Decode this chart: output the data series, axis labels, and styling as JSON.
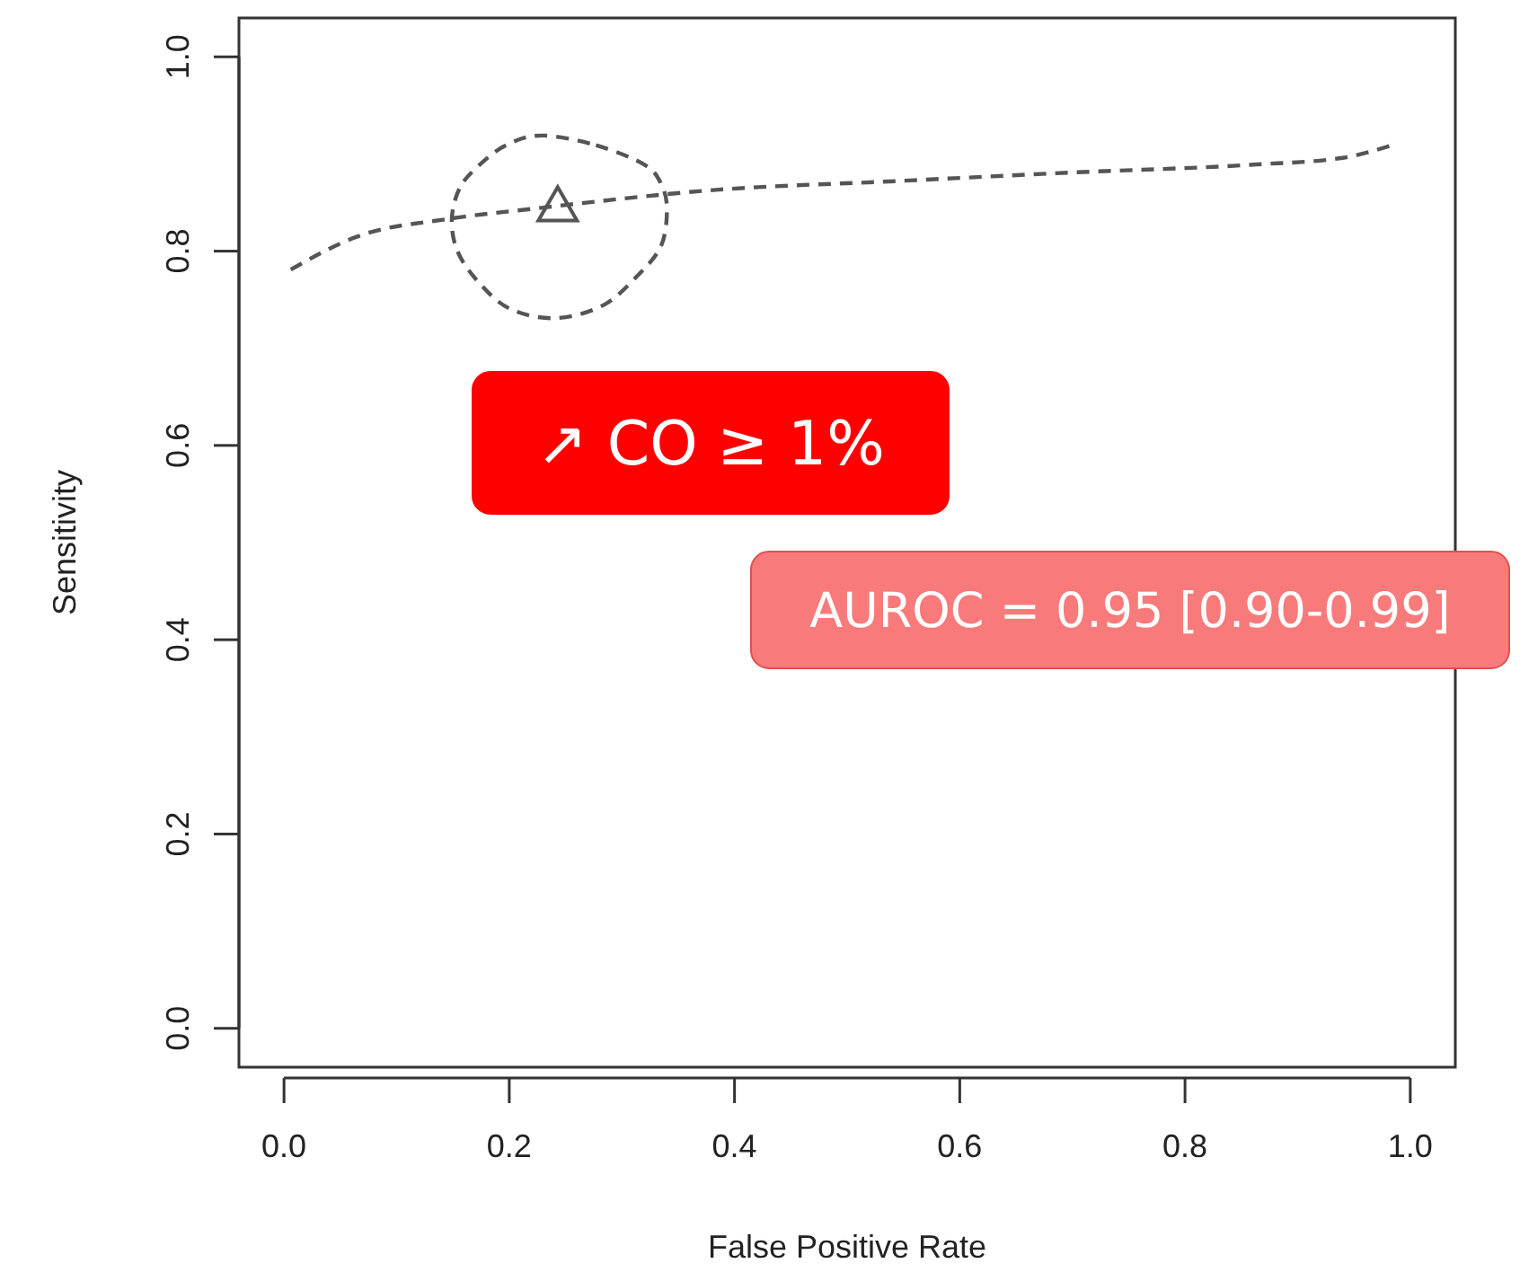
{
  "chart_data": {
    "type": "line",
    "xlabel": "False Positive Rate",
    "ylabel": "Sensitivity",
    "xlim": [
      -0.04,
      1.04
    ],
    "ylim": [
      -0.04,
      1.04
    ],
    "xticks": [
      "0.0",
      0.2,
      0.4,
      0.6,
      0.8,
      "1.0"
    ],
    "yticks": [
      {
        "value": 0,
        "label": "0.0"
      },
      {
        "value": 0.2,
        "label": "0.2"
      },
      {
        "value": 0.4,
        "label": "0.4"
      },
      {
        "value": 0.6,
        "label": "0.6"
      },
      {
        "value": 0.8,
        "label": "0.8"
      },
      {
        "value": 1,
        "label": "1.0"
      }
    ],
    "grid": false,
    "series": [
      {
        "color": "#555555",
        "line_style": "dashed",
        "x": [
          0.006,
          0.065,
          0.145,
          0.224,
          0.383,
          0.542,
          0.701,
          0.86,
          0.94,
          0.984
        ],
        "values": [
          0.781,
          0.815,
          0.833,
          0.844,
          0.863,
          0.872,
          0.881,
          0.889,
          0.896,
          0.909
        ]
      },
      {
        "type": "scatter",
        "color": "#555555",
        "marker": "triangle",
        "x": [
          0.243
        ],
        "values": [
          0.843
        ]
      }
    ],
    "annotations": [
      "↗ CO ≥ 1%",
      "AUROC = 0.95 [0.90-0.99]"
    ]
  }
}
